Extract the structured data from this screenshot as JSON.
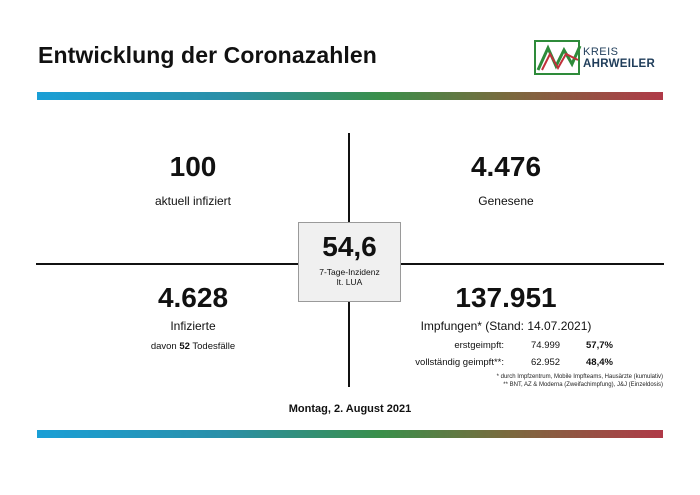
{
  "title": "Entwicklung der Coronazahlen",
  "logo": {
    "line1": "KREIS",
    "line2": "AHRWEILER",
    "colors": [
      "#2e8b3a",
      "#c0303a",
      "#1f3d5a"
    ]
  },
  "center": {
    "value": "54,6",
    "label1": "7-Tage-Inzidenz",
    "label2": "lt. LUA"
  },
  "q1": {
    "value": "100",
    "label": "aktuell infiziert"
  },
  "q2": {
    "value": "4.476",
    "label": "Genesene"
  },
  "q3": {
    "value": "4.628",
    "label": "Infizierte",
    "deaths_prefix": "davon ",
    "deaths_count": "52",
    "deaths_suffix": " Todesfälle"
  },
  "q4": {
    "value": "137.951",
    "label": "Impfungen* (Stand: 14.07.2021)",
    "rows": [
      {
        "label": "erstgeimpft:",
        "count": "74.999",
        "percent": "57,7%"
      },
      {
        "label": "vollständig geimpft**:",
        "count": "62.952",
        "percent": "48,4%"
      }
    ],
    "footnote1": "* durch Impfzentrum, Mobile Impfteams, Hausärzte (kumulativ)",
    "footnote2": "** BNT, AZ & Moderna (Zweifachimpfung), J&J (Einzeldosis)"
  },
  "date": "Montag, 2. August 2021",
  "colors": {
    "bar_start": "#1a9fd6",
    "bar_mid": "#3a8f4a",
    "bar_end": "#b03a48"
  }
}
